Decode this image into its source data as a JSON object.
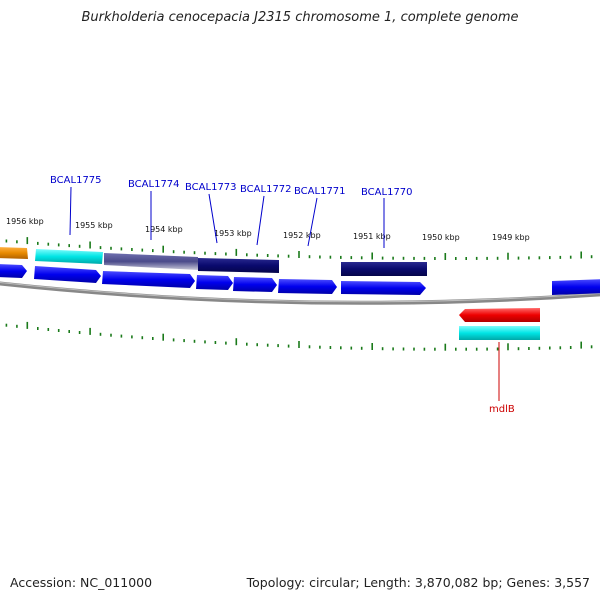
{
  "title": "Burkholderia cenocepacia J2315 chromosome 1, complete genome",
  "footer": {
    "accession": "Accession: NC_011000",
    "summary": "Topology: circular; Length: 3,870,082 bp; Genes: 3,557"
  },
  "ticks": [
    {
      "label": "1956 kbp"
    },
    {
      "label": "1955 kbp"
    },
    {
      "label": "1954 kbp"
    },
    {
      "label": "1953 kbp"
    },
    {
      "label": "1952 kbp"
    },
    {
      "label": "1951 kbp"
    },
    {
      "label": "1950 kbp"
    },
    {
      "label": "1949 kbp"
    }
  ],
  "gene_labels": [
    {
      "name": "BCAL1775",
      "color": "#0000cc"
    },
    {
      "name": "BCAL1774",
      "color": "#0000cc"
    },
    {
      "name": "BCAL1773",
      "color": "#0000cc"
    },
    {
      "name": "BCAL1772",
      "color": "#0000cc"
    },
    {
      "name": "BCAL1771",
      "color": "#0000cc"
    },
    {
      "name": "BCAL1770",
      "color": "#0000cc"
    },
    {
      "name": "mdlB",
      "color": "#cc0000"
    }
  ],
  "colors": {
    "tick": "#1a7a1a",
    "backbone": "#888888",
    "cds": "#0000ee",
    "gene_cyan": "#00e5e5",
    "gene_orange": "#e88a00",
    "gene_navy": "#0a0a6e",
    "gene_slate": "#4a4a8a",
    "gene_red": "#ee0000"
  }
}
